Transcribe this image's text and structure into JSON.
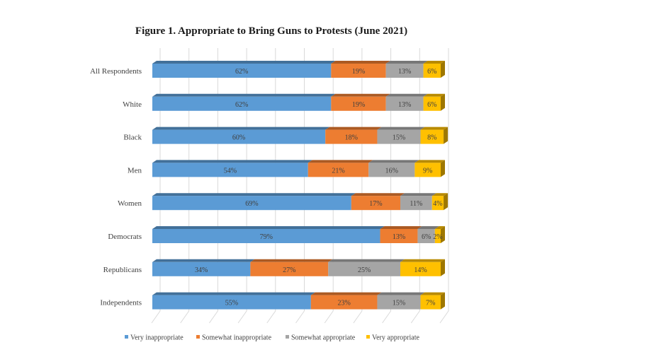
{
  "chart_data": {
    "type": "bar",
    "orientation": "horizontal",
    "stacked": "100%",
    "style": "3d",
    "title": "Figure 1. Appropriate to Bring Guns to Protests (June 2021)",
    "xlabel": "",
    "ylabel": "",
    "xlim": [
      0,
      100
    ],
    "grid": true,
    "legend_position": "bottom",
    "categories": [
      "All Respondents",
      "White",
      "Black",
      "Men",
      "Women",
      "Democrats",
      "Republicans",
      "Independents"
    ],
    "series": [
      {
        "name": "Very inappropriate",
        "color": "#5b9bd5",
        "values": [
          62,
          62,
          60,
          54,
          69,
          79,
          34,
          55
        ]
      },
      {
        "name": "Somewhat inappropriate",
        "color": "#ed7d31",
        "values": [
          19,
          19,
          18,
          21,
          17,
          13,
          27,
          23
        ]
      },
      {
        "name": "Somewhat appropriate",
        "color": "#a5a5a5",
        "values": [
          13,
          13,
          15,
          16,
          11,
          6,
          25,
          15
        ]
      },
      {
        "name": "Very appropriate",
        "color": "#ffc000",
        "values": [
          6,
          6,
          8,
          9,
          4,
          2,
          14,
          7
        ]
      }
    ],
    "value_label_suffix": "%"
  }
}
